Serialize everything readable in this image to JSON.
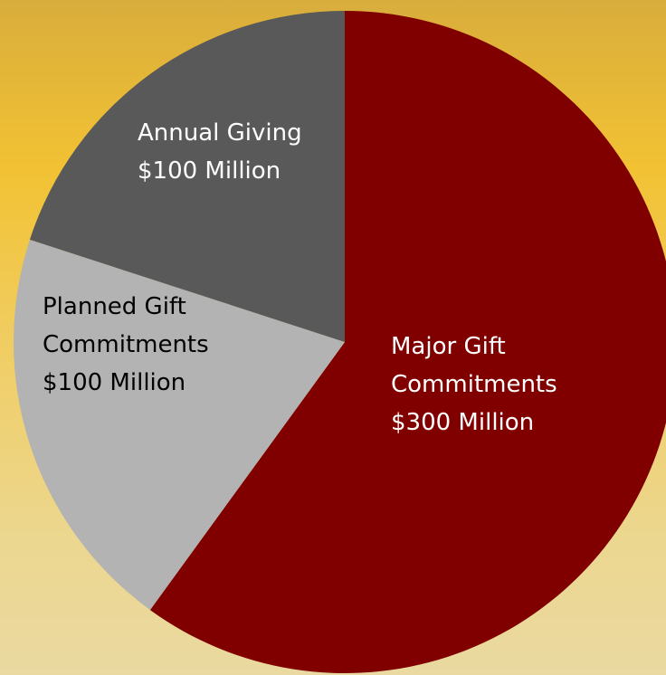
{
  "chart_data": {
    "type": "pie",
    "title": "",
    "slices": [
      {
        "label_lines": [
          "Major Gift",
          "Commitments",
          "$300 Million"
        ],
        "category": "Major Gift Commitments",
        "value": 300,
        "unit": "$ Million",
        "color": "#800000",
        "text_color": "#ffffff"
      },
      {
        "label_lines": [
          "Planned Gift",
          "Commitments",
          "$100 Million"
        ],
        "category": "Planned Gift Commitments",
        "value": 100,
        "unit": "$ Million",
        "color": "#b3b3b3",
        "text_color": "#000000"
      },
      {
        "label_lines": [
          "Annual Giving",
          "$100 Million"
        ],
        "category": "Annual Giving",
        "value": 100,
        "unit": "$ Million",
        "color": "#595959",
        "text_color": "#ffffff"
      }
    ],
    "start": "top",
    "direction": "clockwise",
    "legend": "none",
    "data_labels": "inside"
  }
}
